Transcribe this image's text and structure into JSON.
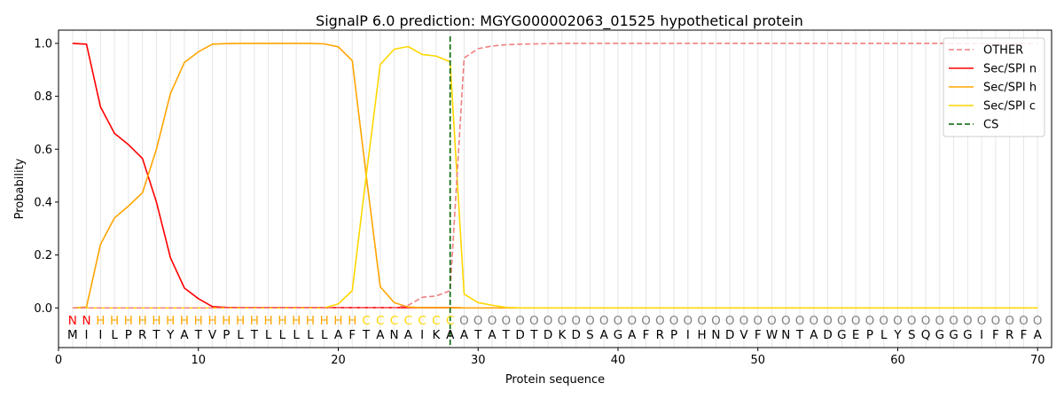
{
  "chart_data": {
    "type": "line",
    "title": "SignalP 6.0 prediction: MGYG000002063_01525 hypothetical protein",
    "xlabel": "Protein sequence",
    "ylabel": "Probability",
    "xlim": [
      0,
      71
    ],
    "ylim": [
      -0.15,
      1.05
    ],
    "xticks": [
      0,
      10,
      20,
      30,
      40,
      50,
      60,
      70
    ],
    "yticks": [
      0.0,
      0.2,
      0.4,
      0.6,
      0.8,
      1.0
    ],
    "grid": "vertical lines at each residue",
    "legend_position": "top-right",
    "sequence": [
      "M",
      "I",
      "I",
      "L",
      "P",
      "R",
      "T",
      "Y",
      "A",
      "T",
      "V",
      "P",
      "L",
      "T",
      "L",
      "L",
      "L",
      "L",
      "L",
      "A",
      "F",
      "T",
      "A",
      "N",
      "A",
      "I",
      "K",
      "A",
      "A",
      "T",
      "A",
      "T",
      "D",
      "T",
      "D",
      "K",
      "D",
      "S",
      "A",
      "G",
      "A",
      "F",
      "R",
      "P",
      "I",
      "H",
      "N",
      "D",
      "V",
      "F",
      "W",
      "N",
      "T",
      "A",
      "D",
      "G",
      "E",
      "P",
      "L",
      "Y",
      "S",
      "Q",
      "G",
      "G",
      "G",
      "I",
      "F",
      "R",
      "F",
      "A"
    ],
    "region_labels": [
      "N",
      "N",
      "H",
      "H",
      "H",
      "H",
      "H",
      "H",
      "H",
      "H",
      "H",
      "H",
      "H",
      "H",
      "H",
      "H",
      "H",
      "H",
      "H",
      "H",
      "H",
      "C",
      "C",
      "C",
      "C",
      "C",
      "C",
      "C",
      "O",
      "O",
      "O",
      "O",
      "O",
      "O",
      "O",
      "O",
      "O",
      "O",
      "O",
      "O",
      "O",
      "O",
      "O",
      "O",
      "O",
      "O",
      "O",
      "O",
      "O",
      "O",
      "O",
      "O",
      "O",
      "O",
      "O",
      "O",
      "O",
      "O",
      "O",
      "O",
      "O",
      "O",
      "O",
      "O",
      "O",
      "O",
      "O",
      "O",
      "O",
      "O"
    ],
    "region_colors": {
      "N": "#ff0000",
      "H": "#ffa500",
      "C": "#ffd700",
      "O": "#808080"
    },
    "cs_position": 28,
    "series": [
      {
        "name": "OTHER",
        "color": "#f08080",
        "dash": true,
        "values": [
          0,
          0,
          0,
          0,
          0,
          0,
          0,
          0,
          0,
          0,
          0,
          0,
          0,
          0,
          0,
          0,
          0,
          0,
          0,
          0,
          0,
          0,
          0,
          0,
          0.01,
          0.04,
          0.045,
          0.065,
          0.945,
          0.98,
          0.99,
          0.995,
          0.997,
          0.998,
          0.999,
          1,
          1,
          1,
          1,
          1,
          1,
          1,
          1,
          1,
          1,
          1,
          1,
          1,
          1,
          1,
          1,
          1,
          1,
          1,
          1,
          1,
          1,
          1,
          1,
          1,
          1,
          1,
          1,
          1,
          1,
          1,
          1,
          1,
          1,
          1
        ]
      },
      {
        "name": "Sec/SPI n",
        "color": "#ff0000",
        "dash": false,
        "values": [
          1.0,
          0.997,
          0.76,
          0.66,
          0.617,
          0.565,
          0.4,
          0.19,
          0.075,
          0.035,
          0.005,
          0.002,
          0.001,
          0.001,
          0.001,
          0.001,
          0.001,
          0.001,
          0.001,
          0.001,
          0.001,
          0.001,
          0.001,
          0.001,
          0.001,
          0.001,
          0.001,
          0.001,
          0,
          0,
          0,
          0,
          0,
          0,
          0,
          0,
          0,
          0,
          0,
          0,
          0,
          0,
          0,
          0,
          0,
          0,
          0,
          0,
          0,
          0,
          0,
          0,
          0,
          0,
          0,
          0,
          0,
          0,
          0,
          0,
          0,
          0,
          0,
          0,
          0,
          0,
          0,
          0,
          0,
          0
        ]
      },
      {
        "name": "Sec/SPI h",
        "color": "#ffa500",
        "dash": false,
        "values": [
          0,
          0.003,
          0.24,
          0.34,
          0.385,
          0.435,
          0.6,
          0.81,
          0.928,
          0.968,
          0.997,
          0.999,
          1.0,
          1.0,
          1.0,
          1.0,
          1.0,
          1.0,
          0.998,
          0.987,
          0.935,
          0.5,
          0.08,
          0.02,
          0.003,
          0.001,
          0.001,
          0.001,
          0,
          0,
          0,
          0,
          0,
          0,
          0,
          0,
          0,
          0,
          0,
          0,
          0,
          0,
          0,
          0,
          0,
          0,
          0,
          0,
          0,
          0,
          0,
          0,
          0,
          0,
          0,
          0,
          0,
          0,
          0,
          0,
          0,
          0,
          0,
          0,
          0,
          0,
          0,
          0,
          0,
          0
        ]
      },
      {
        "name": "Sec/SPI c",
        "color": "#ffd700",
        "dash": false,
        "values": [
          0,
          0,
          0,
          0,
          0,
          0,
          0,
          0,
          0,
          0,
          0,
          0,
          0,
          0,
          0,
          0,
          0,
          0,
          0,
          0.015,
          0.065,
          0.5,
          0.92,
          0.978,
          0.988,
          0.958,
          0.952,
          0.93,
          0.052,
          0.02,
          0.01,
          0.002,
          0,
          0,
          0,
          0,
          0,
          0,
          0,
          0,
          0,
          0,
          0,
          0,
          0,
          0,
          0,
          0,
          0,
          0,
          0,
          0,
          0,
          0,
          0,
          0,
          0,
          0,
          0,
          0,
          0,
          0,
          0,
          0,
          0,
          0,
          0,
          0,
          0,
          0
        ]
      }
    ],
    "legend": [
      {
        "label": "OTHER",
        "color": "#f08080",
        "dash": true
      },
      {
        "label": "Sec/SPI n",
        "color": "#ff0000",
        "dash": false
      },
      {
        "label": "Sec/SPI h",
        "color": "#ffa500",
        "dash": false
      },
      {
        "label": "Sec/SPI c",
        "color": "#ffd700",
        "dash": false
      },
      {
        "label": "CS",
        "color": "#006400",
        "dash": true
      }
    ]
  }
}
